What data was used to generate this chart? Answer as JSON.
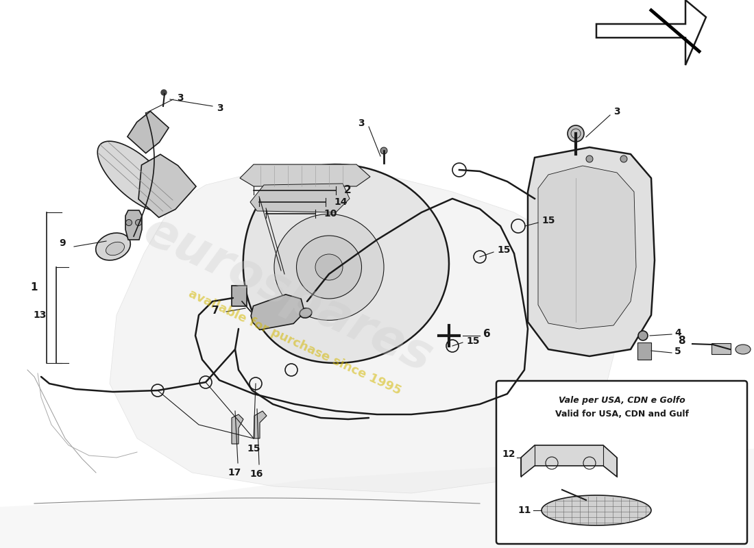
{
  "background_color": "#ffffff",
  "line_color": "#1a1a1a",
  "watermark_color_yellow": "#d4b800",
  "watermark_color_gray": "#cccccc",
  "inset_title_line1": "Vale per USA, CDN e Golfo",
  "inset_title_line2": "Valid for USA, CDN and Gulf",
  "figsize": [
    11.0,
    8.0
  ],
  "dpi": 100
}
